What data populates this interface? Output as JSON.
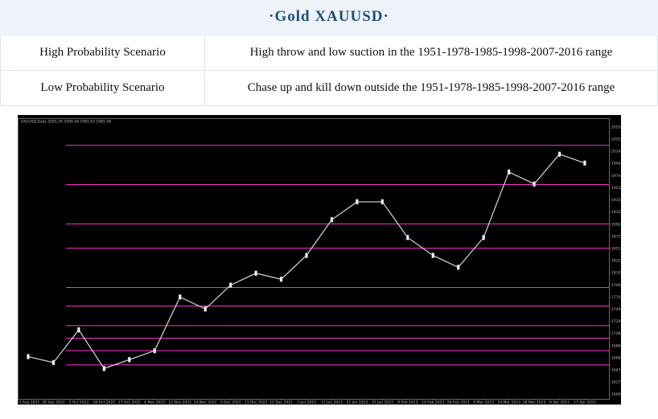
{
  "header": {
    "title": "·Gold XAUUSD·"
  },
  "table": {
    "rows": [
      [
        "High Probability Scenario",
        "High throw and low suction in the 1951-1978-1985-1998-2007-2016 range"
      ],
      [
        "Low Probability Scenario",
        "Chase up and kill down outside the 1951-1978-1985-1998-2007-2016 range"
      ]
    ]
  },
  "chart_data": {
    "type": "line",
    "title": "XAUUSD,Daily 2005.26 2006.44 1981.63 1985.48",
    "categories": [
      "21 Sep 2022",
      "28 Sep 2022",
      "5 Oct 2022",
      "18 Oct 2022",
      "27 Oct 2022",
      "6 Nov 2022",
      "15 Nov 2022",
      "24 Nov 2022",
      "5 Dec 2022",
      "13 Dec 2022",
      "22 Dec 2022",
      "3 Jan 2023",
      "12 Jan 2023",
      "22 Jan 2023",
      "31 Jan 2023",
      "9 Feb 2023",
      "19 Feb 2023",
      "28 Feb 2023",
      "9 Mar 2023",
      "19 Mar 2023",
      "28 Mar 2023",
      "6 Apr 2023",
      "17 Apr 2023"
    ],
    "series": [
      {
        "color": "#d8d8d8",
        "values": [
          1670,
          1660,
          1715,
          1650,
          1665,
          1680,
          1770,
          1750,
          1790,
          1810,
          1800,
          1840,
          1900,
          1930,
          1930,
          1870,
          1840,
          1820,
          1870,
          1980,
          1960,
          2010,
          1995
        ]
      }
    ],
    "levels": [
      2025,
      1959,
      1893,
      1852,
      1786,
      1755,
      1722,
      1701,
      1680,
      1656
    ],
    "level_color": "#ff2fd0",
    "ylim": [
      1599,
      2069
    ],
    "yticks": [
      {
        "value": 2055.6,
        "label": "2055.60"
      },
      {
        "value": 2035.2,
        "label": "2035.20"
      },
      {
        "value": 2014.8,
        "label": "2014.80"
      },
      {
        "value": 1994.4,
        "label": "1994.40"
      },
      {
        "value": 1974.0,
        "label": "1974.00"
      },
      {
        "value": 1953.6,
        "label": "1953.60"
      },
      {
        "value": 1933.2,
        "label": "1933.20"
      },
      {
        "value": 1912.8,
        "label": "1912.80"
      },
      {
        "value": 1892.4,
        "label": "1892.40"
      },
      {
        "value": 1872.0,
        "label": "1872.00"
      },
      {
        "value": 1851.6,
        "label": "1851.60"
      },
      {
        "value": 1831.2,
        "label": "1831.20"
      },
      {
        "value": 1810.8,
        "label": "1810.80"
      },
      {
        "value": 1790.4,
        "label": "1790.40"
      },
      {
        "value": 1770.0,
        "label": "1770.00"
      },
      {
        "value": 1749.6,
        "label": "1749.60"
      },
      {
        "value": 1729.2,
        "label": "1729.20"
      },
      {
        "value": 1708.8,
        "label": "1708.80"
      },
      {
        "value": 1688.4,
        "label": "1688.40"
      },
      {
        "value": 1668.0,
        "label": "1668.00"
      },
      {
        "value": 1647.6,
        "label": "1647.60"
      },
      {
        "value": 1627.2,
        "label": "1627.20"
      },
      {
        "value": 1606.8,
        "label": "1606.80"
      }
    ]
  }
}
